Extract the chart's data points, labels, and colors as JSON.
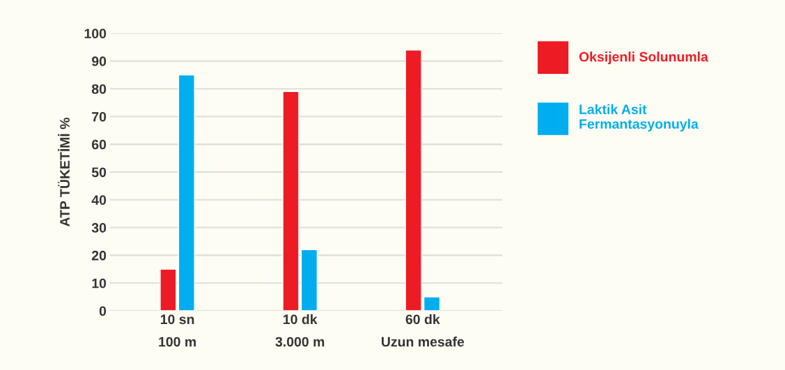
{
  "chart_data": {
    "type": "bar",
    "ylabel": "ATP TÜKETİMİ %",
    "categories": [
      "10 sn\n100 m",
      "10 dk\n3.000 m",
      "60 dk\nUzun mesafe"
    ],
    "series": [
      {
        "name": "Oksijenli Solunumla",
        "color": "#ed1c24",
        "values": [
          15,
          79,
          94
        ]
      },
      {
        "name": "Laktik Asit\nFermantasyonuyla",
        "color": "#00aeef",
        "values": [
          85,
          22,
          5
        ]
      }
    ],
    "ylim": [
      0,
      100
    ],
    "yticks": [
      0,
      10,
      20,
      30,
      40,
      50,
      60,
      70,
      80,
      90,
      100
    ],
    "grid": "y",
    "legend": "right"
  }
}
